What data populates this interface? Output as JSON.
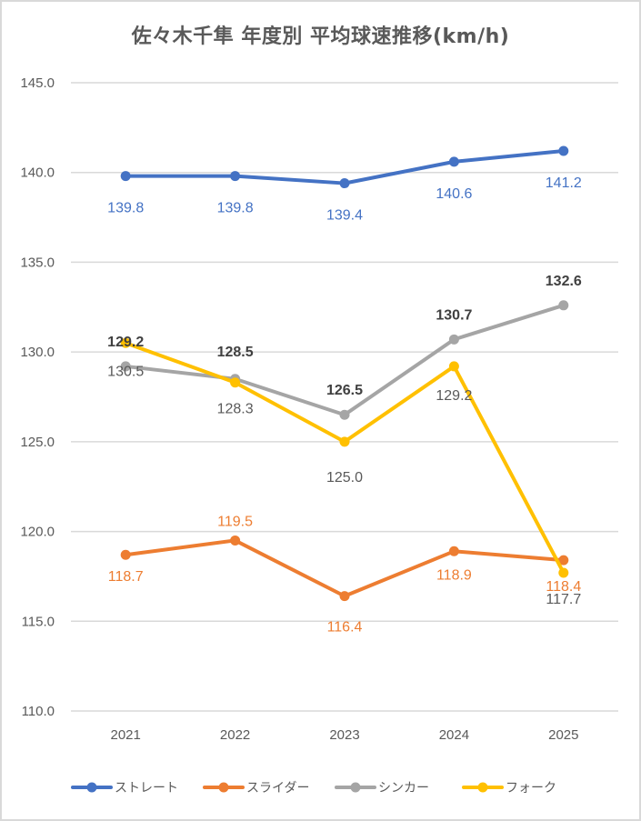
{
  "chart_data": {
    "type": "line",
    "title": "佐々木千隼 年度別 平均球速推移(km/h)",
    "xlabel": "",
    "ylabel": "",
    "categories": [
      "2021",
      "2022",
      "2023",
      "2024",
      "2025"
    ],
    "ylim": [
      110.0,
      145.0
    ],
    "yticks": [
      "110.0",
      "115.0",
      "120.0",
      "125.0",
      "130.0",
      "135.0",
      "140.0",
      "145.0"
    ],
    "grid": true,
    "legend_position": "bottom",
    "series": [
      {
        "name": "ストレート",
        "color": "#4472c4",
        "values": [
          139.8,
          139.8,
          139.4,
          140.6,
          141.2
        ],
        "labels": [
          "139.8",
          "139.8",
          "139.4",
          "140.6",
          "141.2"
        ],
        "label_color": "#4472c4",
        "label_position": "below"
      },
      {
        "name": "スライダー",
        "color": "#ed7d31",
        "values": [
          118.7,
          119.5,
          116.4,
          118.9,
          118.4
        ],
        "labels": [
          "118.7",
          "119.5",
          "116.4",
          "118.9",
          "118.4"
        ],
        "label_color": "#ed7d31",
        "label_position": "below"
      },
      {
        "name": "シンカー",
        "color": "#a5a5a5",
        "values": [
          129.2,
          128.5,
          126.5,
          130.7,
          132.6
        ],
        "labels": [
          "129.2",
          "128.5",
          "126.5",
          "130.7",
          "132.6"
        ],
        "label_color": "#404040",
        "label_position": "above"
      },
      {
        "name": "フォーク",
        "color": "#ffc000",
        "values": [
          130.5,
          128.3,
          125.0,
          129.2,
          117.7
        ],
        "labels": [
          "130.5",
          "128.3",
          "125.0",
          "129.2",
          "117.7"
        ],
        "label_color": "#595959",
        "label_position": "below"
      }
    ]
  }
}
